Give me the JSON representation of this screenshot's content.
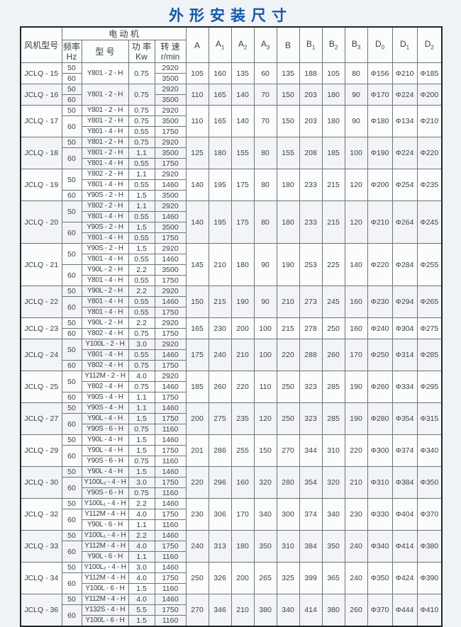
{
  "accent_blue": "#1558a8",
  "page_title": "外形安装尺寸",
  "table": {
    "header": {
      "fan_model": "风机型号",
      "motor_group": "电  动  机",
      "freq": {
        "l1": "频率",
        "l2": "Hz"
      },
      "type": "型  号",
      "power": {
        "l1": "功 率",
        "l2": "Kw"
      },
      "speed": {
        "l1": "转 速",
        "l2": "r/min"
      },
      "dims": [
        {
          "b": "A",
          "s": ""
        },
        {
          "b": "A",
          "s": "1"
        },
        {
          "b": "A",
          "s": "2"
        },
        {
          "b": "A",
          "s": "3"
        },
        {
          "b": "B",
          "s": ""
        },
        {
          "b": "B",
          "s": "1"
        },
        {
          "b": "B",
          "s": "2"
        },
        {
          "b": "B",
          "s": "3"
        },
        {
          "b": "D",
          "s": "0"
        },
        {
          "b": "D",
          "s": "1"
        },
        {
          "b": "D",
          "s": "2"
        }
      ]
    },
    "rows": [
      {
        "name": "JCLQ - 15",
        "freqs": [
          {
            "v": "50",
            "span": 1
          },
          {
            "v": "60",
            "span": 1
          }
        ],
        "motors": [
          {
            "type": "Y801 - 2 - H",
            "span": 2,
            "power": "0.75",
            "speeds": [
              "2920",
              "3500"
            ]
          }
        ],
        "dims": [
          "105",
          "160",
          "135",
          "60",
          "135",
          "188",
          "105",
          "80",
          "Φ156",
          "Φ210",
          "Φ185"
        ]
      },
      {
        "name": "JCLQ - 16",
        "freqs": [
          {
            "v": "50",
            "span": 1
          },
          {
            "v": "60",
            "span": 1
          }
        ],
        "motors": [
          {
            "type": "Y801 - 2 - H",
            "span": 2,
            "power": "0.75",
            "speeds": [
              "2920",
              "3500"
            ]
          }
        ],
        "dims": [
          "110",
          "165",
          "140",
          "70",
          "150",
          "203",
          "180",
          "90",
          "Φ170",
          "Φ224",
          "Φ200"
        ]
      },
      {
        "name": "JCLQ - 17",
        "freqs": [
          {
            "v": "50",
            "span": 1
          },
          {
            "v": "60",
            "span": 2
          }
        ],
        "motors": [
          {
            "type": "Y801 - 2 - H",
            "span": 1,
            "power": "0.75",
            "speeds": [
              "2920"
            ]
          },
          {
            "type": "Y801 - 2 - H",
            "span": 1,
            "power": "0.75",
            "speeds": [
              "3500"
            ]
          },
          {
            "type": "Y801 - 4 - H",
            "span": 1,
            "power": "0.55",
            "speeds": [
              "1750"
            ]
          }
        ],
        "dims": [
          "110",
          "165",
          "140",
          "70",
          "150",
          "203",
          "180",
          "90",
          "Φ180",
          "Φ134",
          "Φ210"
        ]
      },
      {
        "name": "JCLQ - 18",
        "freqs": [
          {
            "v": "50",
            "span": 1
          },
          {
            "v": "60",
            "span": 2
          }
        ],
        "motors": [
          {
            "type": "Y801 - 2 - H",
            "span": 1,
            "power": "0.75",
            "speeds": [
              "2920"
            ]
          },
          {
            "type": "Y801 - 2 - H",
            "span": 1,
            "power": "1.1",
            "speeds": [
              "3500"
            ]
          },
          {
            "type": "Y801 - 4 - H",
            "span": 1,
            "power": "0.55",
            "speeds": [
              "1750"
            ]
          }
        ],
        "dims": [
          "125",
          "180",
          "155",
          "80",
          "155",
          "208",
          "185",
          "100",
          "Φ190",
          "Φ224",
          "Φ220"
        ]
      },
      {
        "name": "JCLQ - 19",
        "freqs": [
          {
            "v": "50",
            "span": 2
          },
          {
            "v": "60",
            "span": 1
          }
        ],
        "motors": [
          {
            "type": "Y802 - 2 - H",
            "span": 1,
            "power": "1.1",
            "speeds": [
              "2920"
            ]
          },
          {
            "type": "Y801 - 4 - H",
            "span": 1,
            "power": "0.55",
            "speeds": [
              "1460"
            ]
          },
          {
            "type": "Y90S - 2 - H",
            "span": 1,
            "power": "1.5",
            "speeds": [
              "3500"
            ]
          }
        ],
        "dims": [
          "140",
          "195",
          "175",
          "80",
          "180",
          "233",
          "215",
          "120",
          "Φ200",
          "Φ254",
          "Φ235"
        ]
      },
      {
        "name": "JCLQ - 20",
        "freqs": [
          {
            "v": "50",
            "span": 2
          },
          {
            "v": "60",
            "span": 2
          }
        ],
        "motors": [
          {
            "type": "Y802 - 2 - H",
            "span": 1,
            "power": "1.1",
            "speeds": [
              "2920"
            ]
          },
          {
            "type": "Y801 - 4 - H",
            "span": 1,
            "power": "0.55",
            "speeds": [
              "1460"
            ]
          },
          {
            "type": "Y90S - 2 - H",
            "span": 1,
            "power": "1.5",
            "speeds": [
              "3500"
            ]
          },
          {
            "type": "Y801 - 4 - H",
            "span": 1,
            "power": "0.55",
            "speeds": [
              "1750"
            ]
          }
        ],
        "dims": [
          "140",
          "195",
          "175",
          "80",
          "180",
          "233",
          "215",
          "120",
          "Φ210",
          "Φ264",
          "Φ245"
        ]
      },
      {
        "name": "JCLQ - 21",
        "freqs": [
          {
            "v": "50",
            "span": 2
          },
          {
            "v": "60",
            "span": 2
          }
        ],
        "motors": [
          {
            "type": "Y90S - 2 - H",
            "span": 1,
            "power": "1.5",
            "speeds": [
              "2920"
            ]
          },
          {
            "type": "Y801 - 4 - H",
            "span": 1,
            "power": "0.55",
            "speeds": [
              "1460"
            ]
          },
          {
            "type": "Y90L - 2 - H",
            "span": 1,
            "power": "2.2",
            "speeds": [
              "3500"
            ]
          },
          {
            "type": "Y801 - 4 - H",
            "span": 1,
            "power": "0.55",
            "speeds": [
              "1750"
            ]
          }
        ],
        "dims": [
          "145",
          "210",
          "180",
          "90",
          "190",
          "253",
          "225",
          "140",
          "Φ220",
          "Φ284",
          "Φ255"
        ]
      },
      {
        "name": "JCLQ - 22",
        "freqs": [
          {
            "v": "50",
            "span": 1
          },
          {
            "v": "60",
            "span": 2
          }
        ],
        "motors": [
          {
            "type": "Y90L - 2 - H",
            "span": 1,
            "power": "2.2",
            "speeds": [
              "2920"
            ]
          },
          {
            "type": "Y801 - 4 - H",
            "span": 1,
            "power": "0.55",
            "speeds": [
              "1460"
            ]
          },
          {
            "type": "Y801 - 4 - H",
            "span": 1,
            "power": "0.55",
            "speeds": [
              "1750"
            ]
          }
        ],
        "dims": [
          "150",
          "215",
          "190",
          "90",
          "210",
          "273",
          "245",
          "160",
          "Φ230",
          "Φ294",
          "Φ265"
        ]
      },
      {
        "name": "JCLQ - 23",
        "freqs": [
          {
            "v": "50",
            "span": 1
          },
          {
            "v": "60",
            "span": 1
          }
        ],
        "motors": [
          {
            "type": "Y90L - 2 - H",
            "span": 1,
            "power": "2.2",
            "speeds": [
              "2920"
            ]
          },
          {
            "type": "Y802 - 4 - H",
            "span": 1,
            "power": "0.75",
            "speeds": [
              "1750"
            ]
          }
        ],
        "dims": [
          "165",
          "230",
          "200",
          "100",
          "215",
          "278",
          "250",
          "160",
          "Φ240",
          "Φ304",
          "Φ275"
        ]
      },
      {
        "name": "JCLQ - 24",
        "freqs": [
          {
            "v": "50",
            "span": 2
          },
          {
            "v": "60",
            "span": 1
          }
        ],
        "motors": [
          {
            "type": "Y100L - 2 - H",
            "span": 1,
            "power": "3.0",
            "speeds": [
              "2920"
            ]
          },
          {
            "type": "Y801 - 4 - H",
            "span": 1,
            "power": "0.55",
            "speeds": [
              "1460"
            ]
          },
          {
            "type": "Y802 - 4 - H",
            "span": 1,
            "power": "0.75",
            "speeds": [
              "1750"
            ]
          }
        ],
        "dims": [
          "175",
          "240",
          "210",
          "100",
          "220",
          "288",
          "260",
          "170",
          "Φ250",
          "Φ314",
          "Φ285"
        ]
      },
      {
        "name": "JCLQ - 25",
        "freqs": [
          {
            "v": "50",
            "span": 2
          },
          {
            "v": "60",
            "span": 1
          }
        ],
        "motors": [
          {
            "type": "Y112M - 2 - H",
            "span": 1,
            "power": "4.0",
            "speeds": [
              "2920"
            ]
          },
          {
            "type": "Y802 - 4 - H",
            "span": 1,
            "power": "0.75",
            "speeds": [
              "1460"
            ]
          },
          {
            "type": "Y90S - 4 - H",
            "span": 1,
            "power": "1.1",
            "speeds": [
              "1750"
            ]
          }
        ],
        "dims": [
          "185",
          "260",
          "220",
          "110",
          "250",
          "323",
          "285",
          "190",
          "Φ260",
          "Φ334",
          "Φ295"
        ]
      },
      {
        "name": "JCLQ - 27",
        "freqs": [
          {
            "v": "50",
            "span": 1
          },
          {
            "v": "60",
            "span": 2
          }
        ],
        "motors": [
          {
            "type": "Y90S - 4 - H",
            "span": 1,
            "power": "1.1",
            "speeds": [
              "1460"
            ]
          },
          {
            "type": "Y90L - 4 - H",
            "span": 1,
            "power": "1.5",
            "speeds": [
              "1750"
            ]
          },
          {
            "type": "Y90S - 6 - H",
            "span": 1,
            "power": "0.75",
            "speeds": [
              "1160"
            ]
          }
        ],
        "dims": [
          "200",
          "275",
          "235",
          "120",
          "250",
          "323",
          "285",
          "190",
          "Φ280",
          "Φ354",
          "Φ315"
        ]
      },
      {
        "name": "JCLQ - 29",
        "freqs": [
          {
            "v": "50",
            "span": 1
          },
          {
            "v": "60",
            "span": 2
          }
        ],
        "motors": [
          {
            "type": "Y90L - 4 - H",
            "span": 1,
            "power": "1.5",
            "speeds": [
              "1460"
            ]
          },
          {
            "type": "Y90L - 4 - H",
            "span": 1,
            "power": "1.5",
            "speeds": [
              "1750"
            ]
          },
          {
            "type": "Y90S - 6 - H",
            "span": 1,
            "power": "0.75",
            "speeds": [
              "1160"
            ]
          }
        ],
        "dims": [
          "201",
          "286",
          "255",
          "150",
          "270",
          "344",
          "310",
          "220",
          "Φ300",
          "Φ374",
          "Φ340"
        ]
      },
      {
        "name": "JCLQ - 30",
        "freqs": [
          {
            "v": "50",
            "span": 1
          },
          {
            "v": "60",
            "span": 2
          }
        ],
        "motors": [
          {
            "type": "Y90L - 4 - H",
            "span": 1,
            "power": "1.5",
            "speeds": [
              "1460"
            ]
          },
          {
            "type": "Y100L₂ - 4 - H",
            "span": 1,
            "power": "3.0",
            "speeds": [
              "1750"
            ]
          },
          {
            "type": "Y90S - 6 - H",
            "span": 1,
            "power": "0.75",
            "speeds": [
              "1160"
            ]
          }
        ],
        "dims": [
          "220",
          "296",
          "160",
          "320",
          "280",
          "354",
          "320",
          "210",
          "Φ310",
          "Φ384",
          "Φ350"
        ]
      },
      {
        "name": "JCLQ - 32",
        "freqs": [
          {
            "v": "50",
            "span": 1
          },
          {
            "v": "60",
            "span": 2
          }
        ],
        "motors": [
          {
            "type": "Y100L₁ - 4 - H",
            "span": 1,
            "power": "2.2",
            "speeds": [
              "1460"
            ]
          },
          {
            "type": "Y112M - 4 - H",
            "span": 1,
            "power": "4.0",
            "speeds": [
              "1750"
            ]
          },
          {
            "type": "Y90L - 6 - H",
            "span": 1,
            "power": "1.1",
            "speeds": [
              "1160"
            ]
          }
        ],
        "dims": [
          "230",
          "306",
          "170",
          "340",
          "300",
          "374",
          "340",
          "230",
          "Φ330",
          "Φ404",
          "Φ370"
        ]
      },
      {
        "name": "JCLQ - 33",
        "freqs": [
          {
            "v": "50",
            "span": 1
          },
          {
            "v": "60",
            "span": 2
          }
        ],
        "motors": [
          {
            "type": "Y100L₁ - 4 - H",
            "span": 1,
            "power": "2.2",
            "speeds": [
              "1460"
            ]
          },
          {
            "type": "Y112M - 4 - H",
            "span": 1,
            "power": "4.0",
            "speeds": [
              "1750"
            ]
          },
          {
            "type": "Y90L - 6 - H",
            "span": 1,
            "power": "1.1",
            "speeds": [
              "1160"
            ]
          }
        ],
        "dims": [
          "240",
          "313",
          "180",
          "350",
          "310",
          "384",
          "350",
          "240",
          "Φ340",
          "Φ414",
          "Φ380"
        ]
      },
      {
        "name": "JCLQ - 34",
        "freqs": [
          {
            "v": "50",
            "span": 1
          },
          {
            "v": "60",
            "span": 2
          }
        ],
        "motors": [
          {
            "type": "Y100L₂ - 4 - H",
            "span": 1,
            "power": "3.0",
            "speeds": [
              "1460"
            ]
          },
          {
            "type": "Y112M - 4 - H",
            "span": 1,
            "power": "4.0",
            "speeds": [
              "1750"
            ]
          },
          {
            "type": "Y100L - 6 - H",
            "span": 1,
            "power": "1.5",
            "speeds": [
              "1160"
            ]
          }
        ],
        "dims": [
          "250",
          "326",
          "200",
          "265",
          "325",
          "399",
          "365",
          "240",
          "Φ350",
          "Φ424",
          "Φ390"
        ]
      },
      {
        "name": "JCLQ - 36",
        "freqs": [
          {
            "v": "50",
            "span": 1
          },
          {
            "v": "60",
            "span": 2
          }
        ],
        "motors": [
          {
            "type": "Y112M - 4 - H",
            "span": 1,
            "power": "4.0",
            "speeds": [
              "1460"
            ]
          },
          {
            "type": "Y132S - 4 - H",
            "span": 1,
            "power": "5.5",
            "speeds": [
              "1750"
            ]
          },
          {
            "type": "Y100L - 6 - H",
            "span": 1,
            "power": "1.5",
            "speeds": [
              "1160"
            ]
          }
        ],
        "dims": [
          "270",
          "346",
          "210",
          "380",
          "340",
          "414",
          "380",
          "260",
          "Φ370",
          "Φ444",
          "Φ410"
        ]
      }
    ]
  }
}
